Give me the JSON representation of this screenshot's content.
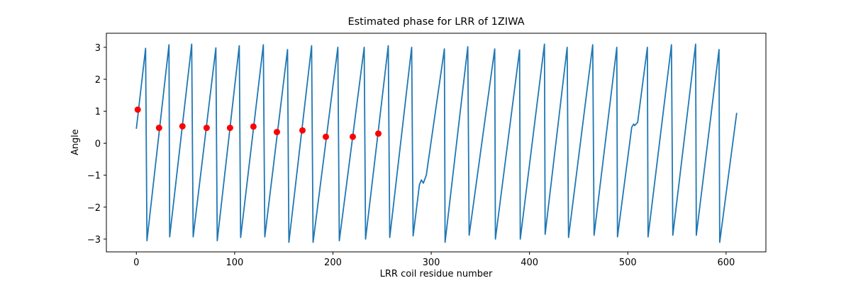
{
  "chart_data": {
    "type": "line",
    "title": "Estimated phase for LRR of 1ZIWA",
    "x_label": "LRR coil residue number",
    "y_label": "Angle",
    "xlim": [
      -30.5,
      640.5
    ],
    "ylim": [
      -3.4,
      3.44
    ],
    "xticks": [
      0,
      100,
      200,
      300,
      400,
      500,
      600
    ],
    "yticks": [
      {
        "value": -3,
        "label": "−3"
      },
      {
        "value": -2,
        "label": "−2"
      },
      {
        "value": -1,
        "label": "−1"
      },
      0,
      1,
      2,
      3
    ],
    "series": [
      {
        "type": "line",
        "color": "#1f77b4",
        "x": [
          0,
          9.4,
          10.8,
          33.2,
          33.9,
          56.3,
          57.8,
          80.9,
          82.3,
          104.7,
          106.1,
          129.2,
          130.7,
          153.8,
          155.2,
          178.3,
          179.8,
          205,
          206.5,
          231.8,
          233.2,
          256.3,
          257.8,
          280.1,
          281.6,
          288,
          290,
          292,
          295,
          313.4,
          314.1,
          337.2,
          338.6,
          364.6,
          365.3,
          389.9,
          390.6,
          415.2,
          415.9,
          438.3,
          439.7,
          464.3,
          465.7,
          488.8,
          489.5,
          504,
          506,
          507,
          510,
          519.9,
          520.6,
          544.4,
          545.8,
          569,
          569.7,
          592.8,
          593.5,
          610.8
        ],
        "values": [
          0.45,
          2.97,
          -3.05,
          3.08,
          -2.93,
          3.1,
          -2.93,
          2.98,
          -3.05,
          3.05,
          -2.95,
          3.08,
          -2.93,
          2.93,
          -3.1,
          3.05,
          -3.1,
          3.0,
          -3.05,
          3.0,
          -3.0,
          3.05,
          -2.95,
          3.0,
          -2.9,
          -1.3,
          -1.15,
          -1.25,
          -1.0,
          2.95,
          -3.1,
          3.02,
          -2.88,
          2.95,
          -3.0,
          2.92,
          -3.0,
          3.1,
          -2.85,
          3.0,
          -2.95,
          3.08,
          -2.88,
          3.0,
          -2.93,
          0.5,
          0.6,
          0.55,
          0.65,
          3.0,
          -2.93,
          3.08,
          -2.88,
          3.1,
          -2.88,
          2.93,
          -3.1,
          0.95
        ]
      },
      {
        "type": "scatter",
        "color": "#ff0000",
        "x": [
          1.4,
          23.1,
          46.9,
          71.5,
          95.3,
          119.1,
          143,
          169,
          192.8,
          220.2,
          246.2
        ],
        "values": [
          1.05,
          0.48,
          0.53,
          0.48,
          0.48,
          0.52,
          0.35,
          0.4,
          0.2,
          0.2,
          0.3
        ]
      }
    ]
  }
}
